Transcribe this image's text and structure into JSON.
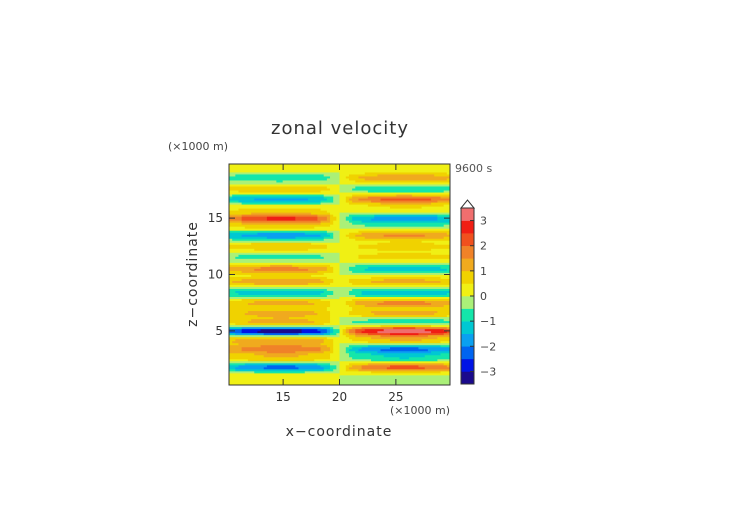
{
  "chart_data": {
    "type": "heatmap",
    "title": "zonal velocity",
    "xlabel": "x−coordinate",
    "ylabel": "z−coordinate",
    "x_unit": "(×1000 m)",
    "y_unit": "(×1000 m)",
    "time_label": "9600 s",
    "xlim": [
      10.2,
      29.8
    ],
    "ylim": [
      0.2,
      19.8
    ],
    "x_ticks": [
      "15",
      "20",
      "25"
    ],
    "x_tick_values": [
      15,
      20,
      25
    ],
    "y_ticks": [
      "5",
      "10",
      "15"
    ],
    "y_tick_values": [
      5,
      10,
      15
    ],
    "colorbar": {
      "ticks": [
        "3",
        "2",
        "1",
        "0",
        "−1",
        "−2",
        "−3"
      ],
      "tick_values": [
        3,
        2,
        1,
        0,
        -1,
        -2,
        -3
      ],
      "levels": [
        -3.5,
        -3.0,
        -2.5,
        -2.0,
        -1.5,
        -1.0,
        -0.5,
        0.0,
        0.5,
        1.0,
        1.5,
        2.0,
        2.5,
        3.0,
        3.5
      ],
      "colors": [
        "#1a0a8c",
        "#0014e6",
        "#0064f0",
        "#0aa0f0",
        "#00c8d2",
        "#14e6aa",
        "#aaf078",
        "#f0f014",
        "#f0d200",
        "#f0aa1e",
        "#f08228",
        "#f0501e",
        "#f01e14",
        "#f06e6e",
        "#f0aaaa"
      ]
    },
    "grid": false,
    "bands": [
      {
        "z": 1.0,
        "left": 0.3,
        "right": -0.2
      },
      {
        "z": 1.8,
        "left": -1.8,
        "right": 1.8
      },
      {
        "z": 2.6,
        "left": 0.8,
        "right": -0.8
      },
      {
        "z": 3.4,
        "left": 1.6,
        "right": -1.8
      },
      {
        "z": 4.2,
        "left": 1.2,
        "right": 0.8
      },
      {
        "z": 5.0,
        "left": -2.8,
        "right": 2.8
      },
      {
        "z": 5.8,
        "left": 1.0,
        "right": -0.8
      },
      {
        "z": 6.6,
        "left": 1.0,
        "right": 1.0
      },
      {
        "z": 7.5,
        "left": 1.0,
        "right": 1.4
      },
      {
        "z": 8.4,
        "left": -1.2,
        "right": -1.2
      },
      {
        "z": 9.4,
        "left": 1.2,
        "right": 1.0
      },
      {
        "z": 10.5,
        "left": 1.4,
        "right": -1.1
      },
      {
        "z": 11.6,
        "left": -0.6,
        "right": 0.6
      },
      {
        "z": 12.5,
        "left": 0.8,
        "right": 0.6
      },
      {
        "z": 13.5,
        "left": -1.6,
        "right": 1.3
      },
      {
        "z": 14.3,
        "left": 0.6,
        "right": -0.4
      },
      {
        "z": 15.0,
        "left": 2.1,
        "right": -1.5
      },
      {
        "z": 15.8,
        "left": 0.5,
        "right": 0.4
      },
      {
        "z": 16.7,
        "left": -1.4,
        "right": 1.8
      },
      {
        "z": 17.6,
        "left": 0.8,
        "right": -0.8
      },
      {
        "z": 18.6,
        "left": -0.8,
        "right": 1.2
      },
      {
        "z": 19.5,
        "left": 0.4,
        "right": 0.2
      }
    ]
  }
}
